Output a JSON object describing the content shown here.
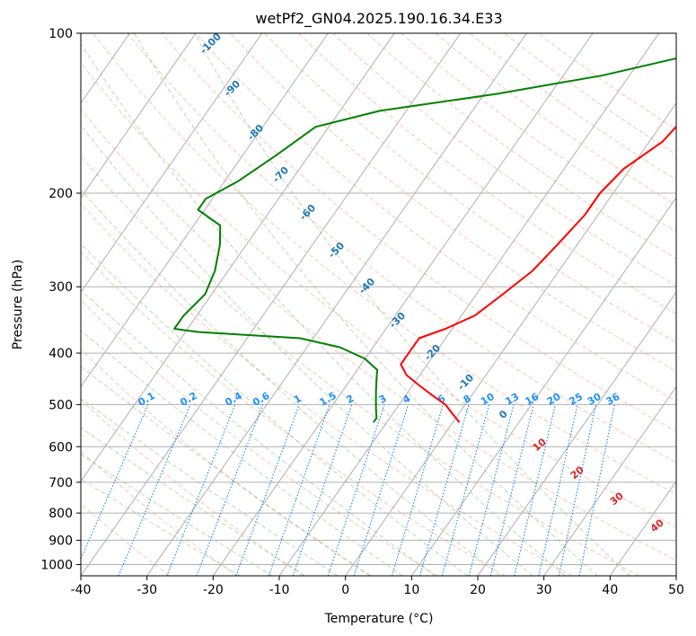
{
  "chart_data": {
    "type": "line",
    "title": "wetPf2_GN04.2025.190.16.34.E33",
    "xlabel": "Temperature (°C)",
    "ylabel": "Pressure (hPa)",
    "xlim": [
      -40,
      50
    ],
    "ylim": [
      1050,
      100
    ],
    "y_scale": "log",
    "grid": true,
    "x_ticks": [
      -40,
      -30,
      -20,
      -10,
      0,
      10,
      20,
      30,
      40,
      50
    ],
    "y_ticks": [
      100,
      200,
      300,
      400,
      500,
      600,
      700,
      800,
      900,
      1000
    ],
    "series": [
      {
        "color": "#ff0000",
        "points": [
          {
            "p": 100,
            "t": 6
          },
          {
            "p": 110,
            "t": 4
          },
          {
            "p": 125,
            "t": 3
          },
          {
            "p": 140,
            "t": 3
          },
          {
            "p": 160,
            "t": 2
          },
          {
            "p": 180,
            "t": -1
          },
          {
            "p": 200,
            "t": -2
          },
          {
            "p": 220,
            "t": -2
          },
          {
            "p": 250,
            "t": -3
          },
          {
            "p": 280,
            "t": -4
          },
          {
            "p": 310,
            "t": -6
          },
          {
            "p": 340,
            "t": -8
          },
          {
            "p": 360,
            "t": -11
          },
          {
            "p": 375,
            "t": -14
          },
          {
            "p": 400,
            "t": -14
          },
          {
            "p": 420,
            "t": -14
          },
          {
            "p": 440,
            "t": -12
          },
          {
            "p": 460,
            "t": -9
          },
          {
            "p": 480,
            "t": -6
          },
          {
            "p": 500,
            "t": -3
          },
          {
            "p": 520,
            "t": -1
          },
          {
            "p": 540,
            "t": 1
          }
        ]
      },
      {
        "color": "#008000",
        "points": [
          {
            "p": 100,
            "t": 2
          },
          {
            "p": 110,
            "t": -3
          },
          {
            "p": 120,
            "t": -14
          },
          {
            "p": 130,
            "t": -28
          },
          {
            "p": 140,
            "t": -44
          },
          {
            "p": 150,
            "t": -52
          },
          {
            "p": 170,
            "t": -55
          },
          {
            "p": 190,
            "t": -58
          },
          {
            "p": 205,
            "t": -61
          },
          {
            "p": 215,
            "t": -61
          },
          {
            "p": 230,
            "t": -56
          },
          {
            "p": 250,
            "t": -54
          },
          {
            "p": 280,
            "t": -52
          },
          {
            "p": 310,
            "t": -51
          },
          {
            "p": 340,
            "t": -52
          },
          {
            "p": 360,
            "t": -52
          },
          {
            "p": 365,
            "t": -48
          },
          {
            "p": 375,
            "t": -32
          },
          {
            "p": 390,
            "t": -25
          },
          {
            "p": 410,
            "t": -20
          },
          {
            "p": 430,
            "t": -17
          },
          {
            "p": 450,
            "t": -16
          },
          {
            "p": 470,
            "t": -15
          },
          {
            "p": 490,
            "t": -14
          },
          {
            "p": 510,
            "t": -13
          },
          {
            "p": 530,
            "t": -12
          },
          {
            "p": 540,
            "t": -12
          }
        ]
      }
    ],
    "isotherm_labels": [
      "-100",
      "-90",
      "-80",
      "-70",
      "-60",
      "-50",
      "-40",
      "-30",
      "-20",
      "-10",
      "0"
    ],
    "mixing_ratio_labels": [
      "0.1",
      "0.2",
      "0.4",
      "0.6",
      "1",
      "1.5",
      "2",
      "3",
      "4",
      "6",
      "8",
      "10",
      "13",
      "16",
      "20",
      "25",
      "30",
      "36"
    ],
    "moist_adiabat_labels": [
      "10",
      "20",
      "30",
      "40"
    ],
    "colors": {
      "temperature": "#ff0000",
      "dewpoint": "#008000",
      "isotherm_label": "#1f77b4",
      "mixing_ratio": "#1e90ff",
      "moist_label": "#d62728",
      "dry_adiabat": "#ff7f50",
      "moist_adiabat": "#2ca02c",
      "grid": "#b0b0b0"
    }
  }
}
